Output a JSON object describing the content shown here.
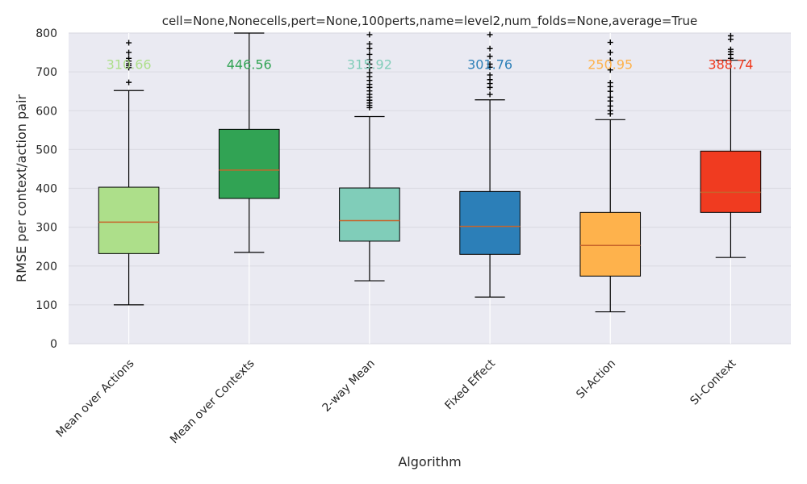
{
  "chart_data": {
    "type": "box",
    "title": "cell=None,Nonecells,pert=None,100perts,name=level2,num_folds=None,average=True",
    "xlabel": "Algorithm",
    "ylabel": "RMSE per context/action pair",
    "ylim": [
      0,
      800
    ],
    "yticks": [
      0,
      100,
      200,
      300,
      400,
      500,
      600,
      700,
      800
    ],
    "grid": true,
    "categories": [
      "Mean over Actions",
      "Mean over Contexts",
      "2-way Mean",
      "Fixed Effect",
      "SI-Action",
      "SI-Context"
    ],
    "boxes": [
      {
        "name": "Mean over Actions",
        "color": "#addf8a",
        "whisker_low": 100,
        "q1": 232,
        "median": 313,
        "q3": 403,
        "whisker_high": 652,
        "median_label": "310.66",
        "outliers": [
          673,
          711,
          716,
          721,
          728,
          735,
          750,
          775
        ]
      },
      {
        "name": "Mean over Contexts",
        "color": "#31a354",
        "whisker_low": 235,
        "q1": 374,
        "median": 447,
        "q3": 552,
        "whisker_high": 800,
        "median_label": "446.56",
        "outliers": []
      },
      {
        "name": "2-way Mean",
        "color": "#80cdb9",
        "whisker_low": 162,
        "q1": 264,
        "median": 317,
        "q3": 401,
        "whisker_high": 585,
        "median_label": "315.92",
        "outliers": [
          608,
          614,
          620,
          627,
          635,
          642,
          651,
          660,
          668,
          678,
          688,
          698,
          711,
          720,
          731,
          745,
          760,
          772,
          796
        ]
      },
      {
        "name": "Fixed Effect",
        "color": "#2c7fb8",
        "whisker_low": 120,
        "q1": 230,
        "median": 302,
        "q3": 392,
        "whisker_high": 628,
        "median_label": "301.76",
        "outliers": [
          642,
          660,
          670,
          680,
          692,
          712,
          720,
          740,
          760,
          796
        ]
      },
      {
        "name": "SI-Action",
        "color": "#feb24c",
        "whisker_low": 82,
        "q1": 174,
        "median": 253,
        "q3": 338,
        "whisker_high": 577,
        "median_label": "250.95",
        "outliers": [
          592,
          600,
          612,
          625,
          635,
          650,
          662,
          672,
          705,
          730,
          750,
          776
        ]
      },
      {
        "name": "SI-Context",
        "color": "#f03b20",
        "whisker_low": 222,
        "q1": 338,
        "median": 390,
        "q3": 496,
        "whisker_high": 730,
        "median_label": "388.74",
        "outliers": [
          735,
          745,
          752,
          758,
          784,
          793
        ]
      }
    ]
  }
}
